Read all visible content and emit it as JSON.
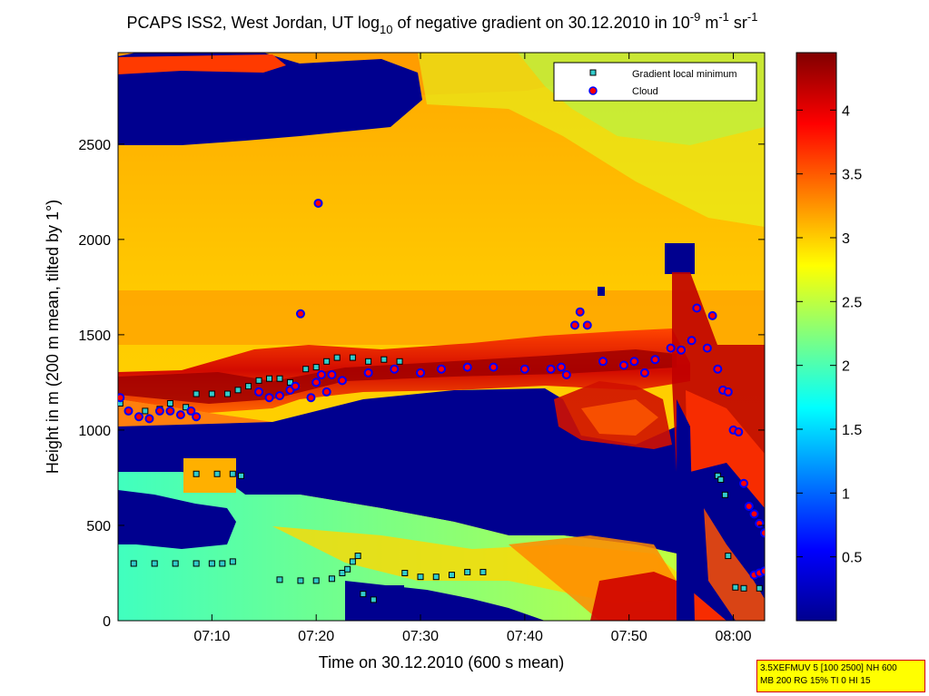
{
  "chart_data": {
    "type": "heatmap",
    "title": {
      "main": "PCAPS ISS2, West Jordan, UT log",
      "log_base": "10",
      "middle": " of negative gradient on 30.12.2010 in 10",
      "exp1": "-9",
      "unit_m": " m",
      "exp2": "-1",
      "unit_sr": " sr",
      "exp3": "-1"
    },
    "xlabel": "Time on 30.12.2010 (600 s mean)",
    "ylabel": "Height in m (200 m mean, tilted by 1°)",
    "xticks": [
      "07:10",
      "07:20",
      "07:30",
      "07:40",
      "07:50",
      "08:00"
    ],
    "yticks": [
      "0",
      "500",
      "1000",
      "1500",
      "2000",
      "2500"
    ],
    "xlim_minutes": [
      61,
      123
    ],
    "ylim": [
      0,
      2980
    ],
    "colorbar": {
      "ticks": [
        "0.5",
        "1",
        "1.5",
        "2",
        "2.5",
        "3",
        "3.5",
        "4"
      ],
      "range": [
        0,
        4.45
      ],
      "colormap": "jet"
    },
    "legend": {
      "position": "top-right",
      "entries": [
        {
          "label": "Gradient local minimum",
          "marker": "square",
          "face": "#33cccc",
          "edge": "#000000"
        },
        {
          "label": "Cloud",
          "marker": "circle",
          "face": "#ff0000",
          "edge": "#0000ff"
        }
      ]
    },
    "series": [
      {
        "name": "Gradient local minimum",
        "points": [
          [
            61.2,
            1140
          ],
          [
            63.6,
            1100
          ],
          [
            65.0,
            1110
          ],
          [
            66.0,
            1140
          ],
          [
            67.5,
            1120
          ],
          [
            68.5,
            1190
          ],
          [
            70.0,
            1190
          ],
          [
            71.5,
            1190
          ],
          [
            72.5,
            1210
          ],
          [
            73.5,
            1230
          ],
          [
            74.5,
            1260
          ],
          [
            75.5,
            1270
          ],
          [
            76.5,
            1270
          ],
          [
            77.5,
            1250
          ],
          [
            79.0,
            1320
          ],
          [
            80.0,
            1330
          ],
          [
            81.0,
            1360
          ],
          [
            82.0,
            1380
          ],
          [
            83.5,
            1380
          ],
          [
            85.0,
            1360
          ],
          [
            86.5,
            1370
          ],
          [
            88.0,
            1360
          ],
          [
            62.5,
            300
          ],
          [
            64.5,
            300
          ],
          [
            66.5,
            300
          ],
          [
            68.5,
            300
          ],
          [
            70.0,
            300
          ],
          [
            71.0,
            300
          ],
          [
            72.0,
            310
          ],
          [
            68.5,
            770
          ],
          [
            70.5,
            770
          ],
          [
            72.0,
            770
          ],
          [
            72.8,
            760
          ],
          [
            76.5,
            215
          ],
          [
            78.5,
            210
          ],
          [
            80.0,
            210
          ],
          [
            81.5,
            220
          ],
          [
            82.5,
            250
          ],
          [
            83.0,
            270
          ],
          [
            83.5,
            310
          ],
          [
            84.0,
            340
          ],
          [
            84.5,
            140
          ],
          [
            85.5,
            110
          ],
          [
            88.5,
            250
          ],
          [
            90.0,
            230
          ],
          [
            91.5,
            230
          ],
          [
            93.0,
            240
          ],
          [
            94.5,
            255
          ],
          [
            96.0,
            255
          ],
          [
            118.5,
            760
          ],
          [
            118.8,
            740
          ],
          [
            119.2,
            660
          ],
          [
            119.5,
            340
          ],
          [
            120.2,
            175
          ],
          [
            121.0,
            170
          ],
          [
            122.5,
            170
          ],
          [
            123.5,
            170
          ],
          [
            124.5,
            170
          ],
          [
            125.5,
            170
          ],
          [
            126.5,
            170
          ],
          [
            127.5,
            170
          ],
          [
            128.5,
            170
          ],
          [
            129.5,
            170
          ],
          [
            130.5,
            170
          ],
          [
            131.5,
            170
          ],
          [
            132.5,
            175
          ],
          [
            133.0,
            175
          ]
        ]
      },
      {
        "name": "Cloud",
        "points": [
          [
            61.2,
            1170
          ],
          [
            62.0,
            1100
          ],
          [
            63.0,
            1070
          ],
          [
            64.0,
            1060
          ],
          [
            65.0,
            1100
          ],
          [
            66.0,
            1100
          ],
          [
            67.0,
            1080
          ],
          [
            68.0,
            1100
          ],
          [
            68.5,
            1070
          ],
          [
            74.5,
            1200
          ],
          [
            75.5,
            1170
          ],
          [
            76.5,
            1180
          ],
          [
            77.5,
            1210
          ],
          [
            78.0,
            1230
          ],
          [
            78.5,
            1610
          ],
          [
            79.5,
            1170
          ],
          [
            80.0,
            1250
          ],
          [
            80.5,
            1290
          ],
          [
            81.0,
            1200
          ],
          [
            81.5,
            1290
          ],
          [
            82.5,
            1260
          ],
          [
            85.0,
            1300
          ],
          [
            87.5,
            1320
          ],
          [
            90.0,
            1300
          ],
          [
            92.0,
            1320
          ],
          [
            94.5,
            1330
          ],
          [
            97.0,
            1330
          ],
          [
            100.0,
            1320
          ],
          [
            102.5,
            1320
          ],
          [
            103.5,
            1330
          ],
          [
            104.0,
            1290
          ],
          [
            104.8,
            1550
          ],
          [
            105.3,
            1620
          ],
          [
            106.0,
            1550
          ],
          [
            107.5,
            1360
          ],
          [
            109.5,
            1340
          ],
          [
            110.5,
            1360
          ],
          [
            111.5,
            1300
          ],
          [
            112.5,
            1370
          ],
          [
            114.0,
            1430
          ],
          [
            115.0,
            1420
          ],
          [
            116.0,
            1470
          ],
          [
            116.5,
            1640
          ],
          [
            117.5,
            1430
          ],
          [
            118.0,
            1600
          ],
          [
            118.5,
            1320
          ],
          [
            119.0,
            1210
          ],
          [
            119.5,
            1200
          ],
          [
            120.0,
            1000
          ],
          [
            120.5,
            990
          ],
          [
            121.0,
            720
          ],
          [
            121.5,
            600
          ],
          [
            122.0,
            560
          ],
          [
            122.5,
            510
          ],
          [
            123.0,
            460
          ],
          [
            123.5,
            420
          ],
          [
            124.0,
            590
          ],
          [
            124.5,
            610
          ],
          [
            125.0,
            660
          ],
          [
            125.5,
            750
          ],
          [
            126.0,
            760
          ],
          [
            126.5,
            870
          ],
          [
            127.0,
            840
          ],
          [
            127.5,
            820
          ],
          [
            128.0,
            790
          ],
          [
            128.5,
            740
          ],
          [
            129.0,
            660
          ],
          [
            129.5,
            620
          ],
          [
            130.0,
            520
          ],
          [
            130.5,
            470
          ],
          [
            131.0,
            450
          ],
          [
            131.5,
            380
          ],
          [
            132.0,
            350
          ],
          [
            132.5,
            300
          ],
          [
            133.0,
            240
          ],
          [
            133.5,
            460
          ],
          [
            122.0,
            240
          ],
          [
            122.5,
            250
          ],
          [
            123.0,
            260
          ],
          [
            123.5,
            280
          ],
          [
            124.5,
            300
          ],
          [
            125.5,
            340
          ],
          [
            126.5,
            390
          ],
          [
            127.5,
            440
          ],
          [
            80.2,
            2190
          ]
        ]
      }
    ]
  },
  "annotation": {
    "line1": "3.5XEFMUV 5 [100 2500] NH 600",
    "line2": "MB 200 RG 15% TI 0 HI 15"
  }
}
